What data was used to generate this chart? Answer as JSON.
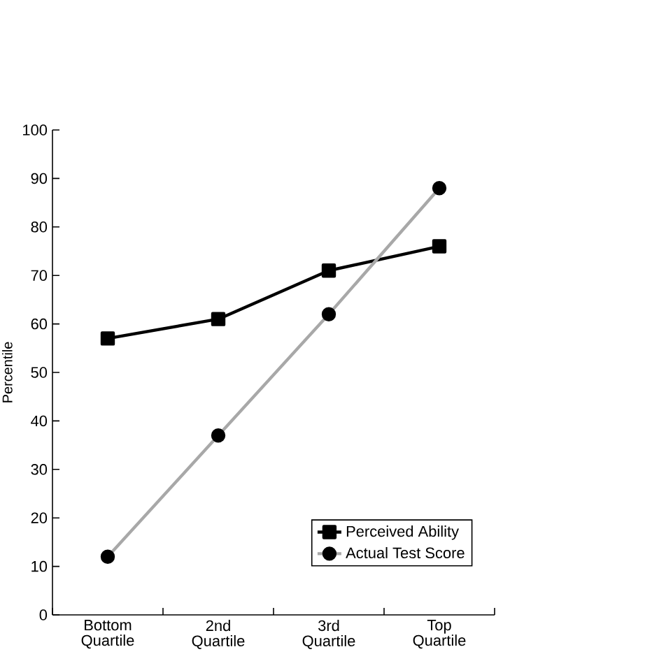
{
  "chart_data": {
    "type": "line",
    "ylabel": "Percentile",
    "categories": [
      "Bottom Quartile",
      "2nd Quartile",
      "3rd Quartile",
      "Top Quartile"
    ],
    "series": [
      {
        "name": "Perceived Ability",
        "color": "#000000",
        "marker": "square",
        "values": [
          57,
          61,
          71,
          76
        ]
      },
      {
        "name": "Actual Test Score",
        "color": "#a8a8a8",
        "marker": "circle",
        "values": [
          12,
          37,
          62,
          88
        ]
      }
    ],
    "ylim": [
      0,
      100
    ],
    "yticks": [
      0,
      10,
      20,
      30,
      40,
      50,
      60,
      70,
      80,
      90,
      100
    ],
    "grid": false,
    "legend": "bottom right",
    "line_style": "solid"
  }
}
